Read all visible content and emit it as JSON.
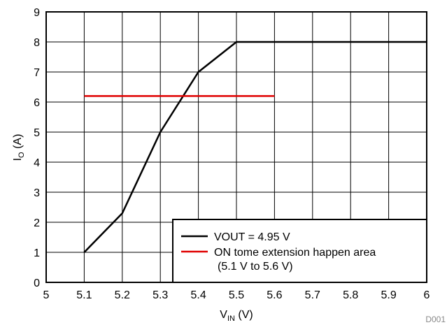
{
  "chart_data": {
    "type": "line",
    "title": "",
    "xlabel_main": "V",
    "xlabel_sub": "IN",
    "xlabel_unit": " (V)",
    "ylabel_main": "I",
    "ylabel_sub": "O",
    "ylabel_unit": " (A)",
    "xlim": [
      5,
      6
    ],
    "ylim": [
      0,
      9
    ],
    "x_ticks": [
      "5",
      "5.1",
      "5.2",
      "5.3",
      "5.4",
      "5.5",
      "5.6",
      "5.7",
      "5.8",
      "5.9",
      "6"
    ],
    "y_ticks": [
      "0",
      "1",
      "2",
      "3",
      "4",
      "5",
      "6",
      "7",
      "8",
      "9"
    ],
    "grid": true,
    "legend_position": "bottom-right",
    "series": [
      {
        "name": "VOUT = 4.95 V",
        "color": "#000000",
        "x": [
          5.1,
          5.2,
          5.3,
          5.4,
          5.5,
          6.0
        ],
        "y": [
          1.0,
          2.3,
          5.0,
          7.0,
          8.0,
          8.0
        ]
      },
      {
        "name": "ON tome extension happen area",
        "name_line2": "(5.1 V  to 5.6 V)",
        "color": "#e00000",
        "x": [
          5.1,
          5.6
        ],
        "y": [
          6.2,
          6.2
        ]
      }
    ],
    "figure_id": "D001"
  }
}
